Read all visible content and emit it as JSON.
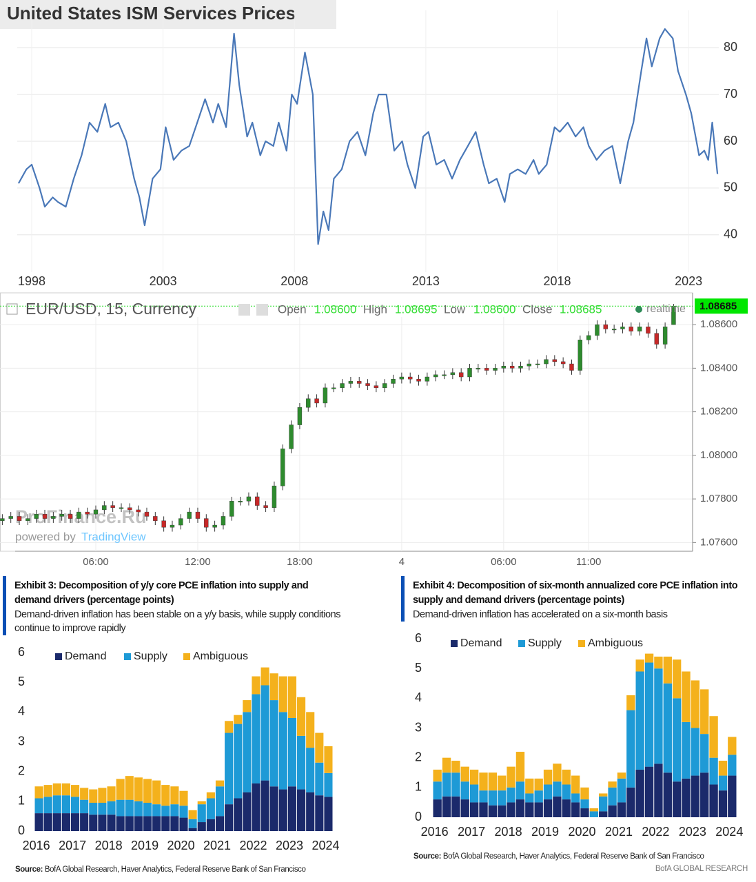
{
  "chart_data": [
    {
      "type": "line",
      "title": "United States ISM Services Prices",
      "color": "#4a78b8",
      "x": [
        1997.5,
        1997.8,
        1998.0,
        1998.3,
        1998.5,
        1998.8,
        1999.0,
        1999.3,
        1999.6,
        1999.9,
        2000.2,
        2000.5,
        2000.8,
        2001.0,
        2001.3,
        2001.6,
        2001.9,
        2002.1,
        2002.3,
        2002.6,
        2002.9,
        2003.1,
        2003.4,
        2003.7,
        2004.0,
        2004.3,
        2004.6,
        2004.9,
        2005.1,
        2005.4,
        2005.7,
        2005.9,
        2006.2,
        2006.4,
        2006.7,
        2006.9,
        2007.2,
        2007.4,
        2007.7,
        2007.9,
        2008.1,
        2008.4,
        2008.7,
        2008.9,
        2009.1,
        2009.3,
        2009.5,
        2009.8,
        2010.1,
        2010.4,
        2010.7,
        2011.0,
        2011.2,
        2011.5,
        2011.8,
        2012.1,
        2012.3,
        2012.6,
        2012.9,
        2013.1,
        2013.4,
        2013.7,
        2014.0,
        2014.3,
        2014.6,
        2014.9,
        2015.2,
        2015.4,
        2015.7,
        2016.0,
        2016.2,
        2016.5,
        2016.8,
        2017.1,
        2017.3,
        2017.6,
        2017.9,
        2018.1,
        2018.4,
        2018.7,
        2019.0,
        2019.2,
        2019.5,
        2019.8,
        2020.1,
        2020.4,
        2020.7,
        2020.9,
        2021.2,
        2021.4,
        2021.6,
        2021.9,
        2022.1,
        2022.4,
        2022.6,
        2022.9,
        2023.1,
        2023.4,
        2023.6,
        2023.75,
        2023.9,
        2024.1
      ],
      "values": [
        51,
        54,
        55,
        50,
        46,
        48,
        47,
        46,
        52,
        57,
        64,
        62,
        68,
        63,
        64,
        60,
        52,
        48,
        42,
        52,
        54,
        63,
        56,
        58,
        59,
        64,
        69,
        64,
        68,
        63,
        83,
        72,
        61,
        64,
        57,
        60,
        59,
        64,
        58,
        70,
        68,
        79,
        70,
        38,
        45,
        41,
        52,
        54,
        60,
        62,
        57,
        66,
        70,
        70,
        58,
        60,
        55,
        50,
        61,
        62,
        55,
        56,
        52,
        56,
        59,
        62,
        55,
        51,
        52,
        47,
        53,
        54,
        53,
        56,
        53,
        55,
        63,
        62,
        64,
        61,
        63,
        59,
        56,
        58,
        59,
        51,
        60,
        64,
        75,
        82,
        76,
        82,
        84,
        82,
        75,
        70,
        66,
        57,
        58,
        56,
        64,
        53
      ],
      "xlim": [
        1997.45,
        2024.15
      ],
      "xticks": [
        1998,
        2003,
        2008,
        2013,
        2018,
        2023
      ],
      "ylim": [
        32,
        88
      ],
      "yticks": [
        40,
        50,
        60,
        70,
        80
      ],
      "grid": true
    },
    {
      "type": "candlestick",
      "title": "EUR/USD, 15, Currency",
      "ohlc": [
        {
          "name": "Open",
          "label": "1.08600"
        },
        {
          "name": "High",
          "label": "1.08695"
        },
        {
          "name": "Low",
          "label": "1.08600"
        },
        {
          "name": "Close",
          "label": "1.08685"
        }
      ],
      "status": "realtime",
      "watermark": "ProFinance.Ru",
      "powered_by": "powered by",
      "provider": "TradingView",
      "up_color": "#2e8b2e",
      "down_color": "#c62828",
      "categories": [
        null,
        null,
        null,
        null,
        null,
        null,
        null,
        null,
        null,
        null,
        null,
        "06:00",
        null,
        null,
        null,
        null,
        null,
        null,
        null,
        null,
        null,
        null,
        null,
        "12:00",
        null,
        null,
        null,
        null,
        null,
        null,
        null,
        null,
        null,
        null,
        null,
        "18:00",
        null,
        null,
        null,
        null,
        null,
        null,
        null,
        null,
        null,
        null,
        null,
        "4",
        null,
        null,
        null,
        null,
        null,
        null,
        null,
        null,
        null,
        null,
        null,
        "06:00",
        null,
        null,
        null,
        null,
        null,
        null,
        null,
        null,
        null,
        "11:00",
        null,
        null,
        null,
        null,
        null,
        null,
        null,
        null,
        null,
        null
      ],
      "open": [
        1.077,
        1.0771,
        1.0772,
        1.077,
        1.0771,
        1.0773,
        1.0771,
        1.0772,
        1.0773,
        1.0771,
        1.0774,
        1.0773,
        1.0775,
        1.0777,
        1.0776,
        1.0776,
        1.0775,
        1.0774,
        1.0772,
        1.077,
        1.0767,
        1.0768,
        1.0771,
        1.0774,
        1.0771,
        1.0767,
        1.0768,
        1.0772,
        1.0779,
        1.0779,
        1.0781,
        1.0777,
        1.0776,
        1.0786,
        1.0803,
        1.0814,
        1.0822,
        1.0826,
        1.0824,
        1.0831,
        1.0831,
        1.0833,
        1.0834,
        1.0833,
        1.0832,
        1.0831,
        1.0833,
        1.0835,
        1.0836,
        1.0835,
        1.0834,
        1.0836,
        1.0837,
        1.0837,
        1.0838,
        1.0836,
        1.084,
        1.084,
        1.0839,
        1.084,
        1.0841,
        1.084,
        1.0841,
        1.0842,
        1.0842,
        1.0844,
        1.0843,
        1.0842,
        1.0839,
        1.0853,
        1.0855,
        1.086,
        1.0858,
        1.0858,
        1.0859,
        1.0857,
        1.0859,
        1.0856,
        1.0851,
        1.086
      ],
      "high": [
        1.0773,
        1.0774,
        1.0774,
        1.0773,
        1.0775,
        1.0775,
        1.0774,
        1.0775,
        1.0775,
        1.0776,
        1.0776,
        1.0777,
        1.0779,
        1.0779,
        1.0778,
        1.0778,
        1.0777,
        1.0776,
        1.0774,
        1.0772,
        1.077,
        1.0773,
        1.0776,
        1.0776,
        1.0773,
        1.077,
        1.0774,
        1.0781,
        1.0781,
        1.0783,
        1.0783,
        1.0779,
        1.0788,
        1.0805,
        1.0816,
        1.0824,
        1.0828,
        1.0828,
        1.0833,
        1.0833,
        1.0835,
        1.0836,
        1.0836,
        1.0835,
        1.0834,
        1.0835,
        1.0837,
        1.0838,
        1.0838,
        1.0837,
        1.0838,
        1.0839,
        1.0839,
        1.084,
        1.084,
        1.0842,
        1.0842,
        1.0842,
        1.0842,
        1.0843,
        1.0843,
        1.0843,
        1.0844,
        1.0844,
        1.0846,
        1.0846,
        1.0845,
        1.0844,
        1.0855,
        1.0857,
        1.0862,
        1.0862,
        1.086,
        1.0861,
        1.0861,
        1.0861,
        1.0861,
        1.0858,
        1.0861,
        1.08695
      ],
      "low": [
        1.0768,
        1.0769,
        1.0768,
        1.0768,
        1.0769,
        1.0769,
        1.0769,
        1.077,
        1.0769,
        1.0769,
        1.0771,
        1.0771,
        1.0773,
        1.0774,
        1.0774,
        1.0773,
        1.0772,
        1.077,
        1.0768,
        1.0765,
        1.0765,
        1.0766,
        1.0769,
        1.0769,
        1.0765,
        1.0765,
        1.0766,
        1.077,
        1.0777,
        1.0777,
        1.0775,
        1.0774,
        1.0774,
        1.0784,
        1.0801,
        1.0812,
        1.082,
        1.0822,
        1.0822,
        1.0829,
        1.0829,
        1.0831,
        1.0831,
        1.083,
        1.0829,
        1.0829,
        1.0831,
        1.0833,
        1.0833,
        1.0832,
        1.0832,
        1.0834,
        1.0835,
        1.0835,
        1.0834,
        1.0834,
        1.0838,
        1.0837,
        1.0837,
        1.0838,
        1.0838,
        1.0838,
        1.0839,
        1.084,
        1.084,
        1.0841,
        1.084,
        1.0837,
        1.0837,
        1.0851,
        1.0853,
        1.0856,
        1.0856,
        1.0856,
        1.0855,
        1.0855,
        1.0854,
        1.0849,
        1.0849,
        1.086
      ],
      "close": [
        1.0771,
        1.0772,
        1.077,
        1.0771,
        1.0773,
        1.0771,
        1.0772,
        1.0773,
        1.0771,
        1.0774,
        1.0773,
        1.0775,
        1.0777,
        1.0776,
        1.0776,
        1.0775,
        1.0774,
        1.0772,
        1.077,
        1.0767,
        1.0768,
        1.0771,
        1.0774,
        1.0771,
        1.0767,
        1.0768,
        1.0772,
        1.0779,
        1.0779,
        1.0781,
        1.0777,
        1.0776,
        1.0786,
        1.0803,
        1.0814,
        1.0822,
        1.0826,
        1.0824,
        1.0831,
        1.0831,
        1.0833,
        1.0834,
        1.0833,
        1.0832,
        1.0831,
        1.0833,
        1.0835,
        1.0836,
        1.0835,
        1.0834,
        1.0836,
        1.0837,
        1.0837,
        1.0838,
        1.0836,
        1.084,
        1.084,
        1.0839,
        1.084,
        1.0841,
        1.084,
        1.0841,
        1.0842,
        1.0842,
        1.0844,
        1.0843,
        1.0842,
        1.0839,
        1.0853,
        1.0855,
        1.086,
        1.0858,
        1.0858,
        1.0859,
        1.0857,
        1.0859,
        1.0856,
        1.0851,
        1.0859,
        1.08685
      ],
      "ylim": [
        1.0756,
        1.0873
      ],
      "yticks": [
        {
          "value": 1.076,
          "label": "1.07600"
        },
        {
          "value": 1.078,
          "label": "1.07800"
        },
        {
          "value": 1.08,
          "label": "1.08000"
        },
        {
          "value": 1.082,
          "label": "1.08200"
        },
        {
          "value": 1.084,
          "label": "1.08400"
        },
        {
          "value": 1.086,
          "label": "1.08600"
        }
      ],
      "grid": true
    },
    {
      "type": "bar",
      "stacked": true,
      "title": "Exhibit 3: Decomposition of y/y core PCE inflation into supply and demand drivers (percentage points)",
      "subtitle": "Demand-driven inflation has been stable on a y/y basis, while supply conditions continue to improve rapidly",
      "source_label": "Source:",
      "source": "BofA Global Research, Haver Analytics, Federal Reserve Bank of San Francisco",
      "categories": [
        "2016",
        null,
        null,
        null,
        "2017",
        null,
        null,
        null,
        "2018",
        null,
        null,
        null,
        "2019",
        null,
        null,
        null,
        "2020",
        null,
        null,
        null,
        "2021",
        null,
        null,
        null,
        "2022",
        null,
        null,
        null,
        "2023",
        null,
        null,
        null,
        "2024"
      ],
      "series": [
        {
          "name": "Demand",
          "color": "#1b2a6b",
          "values": [
            0.6,
            0.6,
            0.6,
            0.6,
            0.6,
            0.6,
            0.55,
            0.55,
            0.55,
            0.5,
            0.5,
            0.5,
            0.5,
            0.5,
            0.5,
            0.5,
            0.45,
            0.1,
            0.3,
            0.4,
            0.5,
            0.9,
            1.1,
            1.3,
            1.6,
            1.7,
            1.5,
            1.4,
            1.5,
            1.4,
            1.3,
            1.2,
            1.15
          ]
        },
        {
          "name": "Supply",
          "color": "#1e9ad6",
          "values": [
            0.5,
            0.55,
            0.6,
            0.6,
            0.55,
            0.45,
            0.4,
            0.4,
            0.45,
            0.55,
            0.55,
            0.5,
            0.45,
            0.4,
            0.35,
            0.4,
            0.4,
            0.3,
            0.6,
            0.7,
            1.0,
            2.4,
            2.5,
            2.7,
            3.0,
            3.2,
            2.9,
            2.6,
            2.3,
            1.8,
            1.5,
            1.1,
            0.8
          ]
        },
        {
          "name": "Ambiguous",
          "color": "#f4b11c",
          "values": [
            0.4,
            0.4,
            0.4,
            0.4,
            0.4,
            0.4,
            0.45,
            0.5,
            0.5,
            0.7,
            0.8,
            0.8,
            0.8,
            0.8,
            0.7,
            0.6,
            0.5,
            0.3,
            0.1,
            0.2,
            0.2,
            0.4,
            0.3,
            0.4,
            0.6,
            0.6,
            0.9,
            1.2,
            1.4,
            1.3,
            1.2,
            1.0,
            0.9
          ]
        }
      ],
      "ylim": [
        0,
        6
      ],
      "yticks": [
        0,
        1,
        2,
        3,
        4,
        5,
        6
      ]
    },
    {
      "type": "bar",
      "stacked": true,
      "title": "Exhibit 4: Decomposition of six-month annualized core PCE inflation into supply and demand drivers (percentage points)",
      "subtitle": "Demand-driven inflation has accelerated on a six-month basis",
      "source_label": "Source:",
      "source": "BofA Global Research, Haver Analytics, Federal Reserve Bank of San Francisco",
      "footer": "BofA GLOBAL RESEARCH",
      "categories": [
        "2016",
        null,
        null,
        null,
        "2017",
        null,
        null,
        null,
        "2018",
        null,
        null,
        null,
        "2019",
        null,
        null,
        null,
        "2020",
        null,
        null,
        null,
        "2021",
        null,
        null,
        null,
        "2022",
        null,
        null,
        null,
        "2023",
        null,
        null,
        null,
        "2024"
      ],
      "series": [
        {
          "name": "Demand",
          "color": "#1b2a6b",
          "values": [
            0.6,
            0.7,
            0.7,
            0.6,
            0.5,
            0.5,
            0.4,
            0.4,
            0.5,
            0.6,
            0.5,
            0.5,
            0.6,
            0.7,
            0.6,
            0.5,
            0.3,
            0.0,
            0.2,
            0.4,
            0.5,
            1.0,
            1.6,
            1.7,
            1.8,
            1.5,
            1.2,
            1.3,
            1.4,
            1.5,
            1.1,
            0.9,
            1.4
          ]
        },
        {
          "name": "Supply",
          "color": "#1e9ad6",
          "values": [
            0.6,
            0.8,
            0.8,
            0.6,
            0.6,
            0.4,
            0.5,
            0.5,
            0.5,
            0.6,
            0.3,
            0.4,
            0.5,
            0.5,
            0.5,
            0.3,
            0.3,
            0.2,
            0.5,
            0.6,
            0.8,
            2.6,
            3.3,
            3.5,
            3.2,
            3.0,
            2.8,
            1.9,
            1.6,
            1.3,
            0.9,
            0.5,
            0.7
          ]
        },
        {
          "name": "Ambiguous",
          "color": "#f4b11c",
          "values": [
            0.4,
            0.5,
            0.4,
            0.5,
            0.5,
            0.6,
            0.6,
            0.5,
            0.7,
            1.0,
            0.5,
            0.4,
            0.5,
            0.6,
            0.5,
            0.6,
            0.4,
            0.1,
            0.1,
            0.2,
            0.2,
            0.5,
            0.4,
            0.3,
            0.4,
            0.9,
            1.3,
            1.7,
            1.6,
            1.5,
            1.4,
            0.5,
            0.6
          ]
        }
      ],
      "ylim": [
        0,
        6
      ],
      "yticks": [
        0,
        1,
        2,
        3,
        4,
        5,
        6
      ]
    }
  ]
}
